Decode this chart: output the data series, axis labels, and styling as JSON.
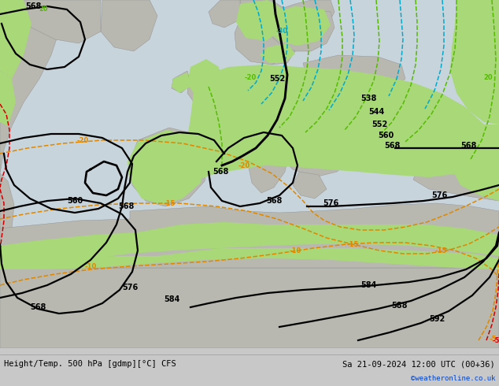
{
  "title_left": "Height/Temp. 500 hPa [gdmp][°C] CFS",
  "title_right": "Sa 21-09-2024 12:00 UTC (00+36)",
  "credit": "©weatheronline.co.uk",
  "fig_width": 6.34,
  "fig_height": 4.9,
  "dpi": 100,
  "bg_color": "#c8c8c8",
  "sea_color": "#d2d2d2",
  "land_gray_color": "#b8b8b0",
  "land_green_color": "#a8d878",
  "label_fontsize": 7,
  "title_fontsize": 7.5,
  "credit_fontsize": 6.5,
  "credit_color": "#0044cc",
  "geo_color": "#000000",
  "geo_lw": 1.6,
  "temp_orange_color": "#dd8800",
  "temp_cyan_color": "#00aacc",
  "temp_red_color": "#cc0000",
  "temp_green_color": "#55bb00",
  "temp_lw": 1.1,
  "bottom_bar_height": 48
}
